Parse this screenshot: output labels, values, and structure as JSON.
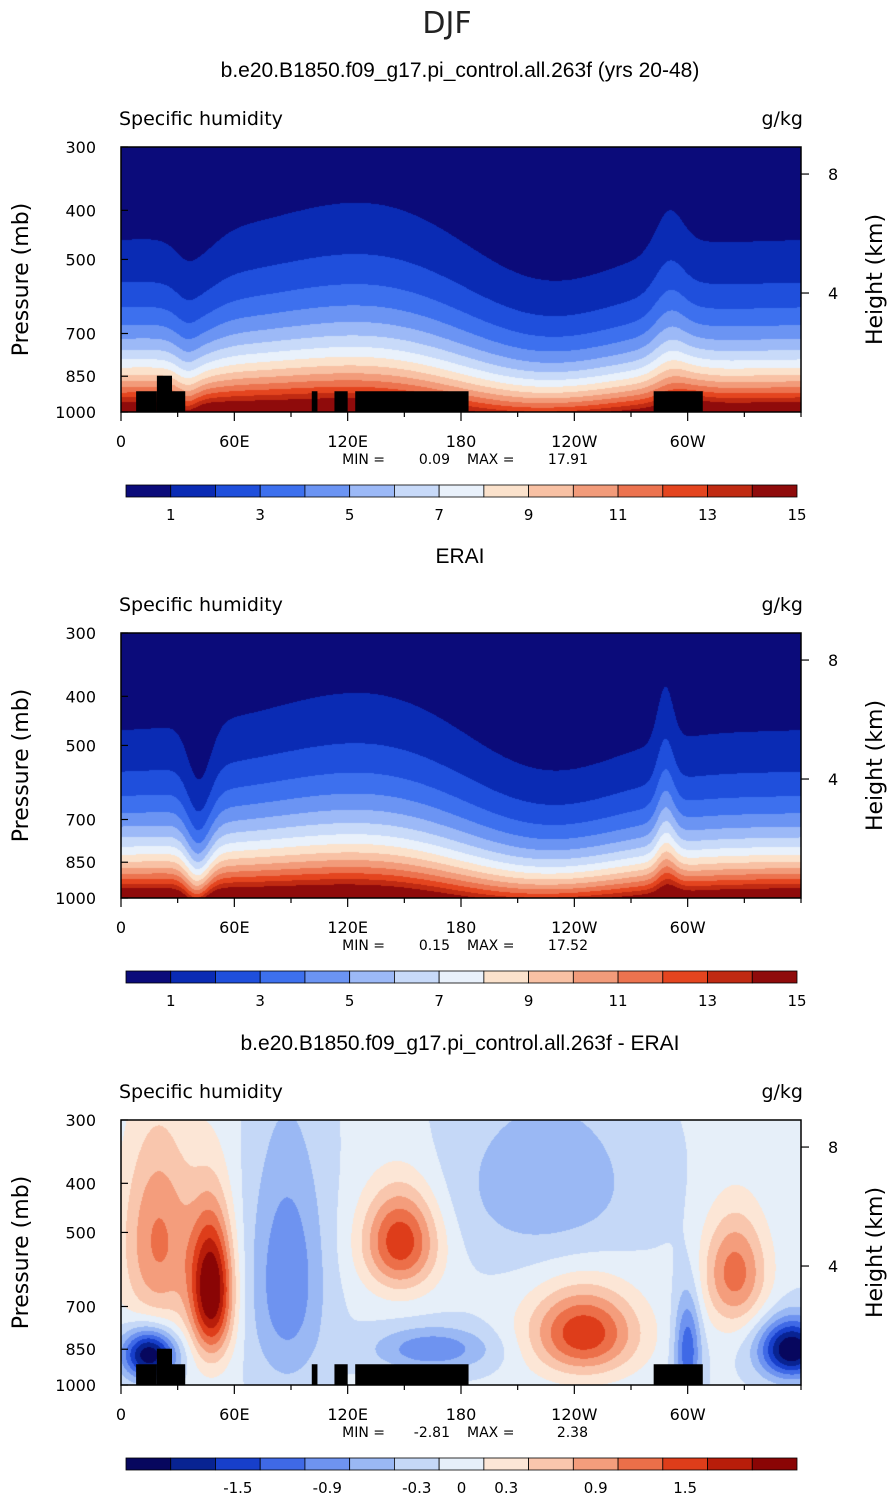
{
  "figure_title": "DJF",
  "colors": {
    "abs_scale": [
      "#0b0b7a",
      "#0a2bb4",
      "#1f4fdc",
      "#3d70ee",
      "#6b94f3",
      "#9cb9f7",
      "#c8daf9",
      "#e9f1fb",
      "#fbe2cc",
      "#f8c1a4",
      "#f29b7a",
      "#ec734f",
      "#e4451f",
      "#c02a12",
      "#8f0b0b"
    ],
    "diff_scale": [
      "#07075e",
      "#082392",
      "#173fcb",
      "#3f69e6",
      "#6e93f0",
      "#9ab8f4",
      "#c5d8f7",
      "#e6eff9",
      "#fce6d6",
      "#f9c6ad",
      "#f49d7c",
      "#ec6f49",
      "#de3d1a",
      "#b81d0a",
      "#8a0505"
    ],
    "topography": "#000000"
  },
  "panels": [
    {
      "title": "b.e20.B1850.f09_g17.pi_control.all.263f (yrs 20-48)",
      "left_label": "Specific humidity",
      "right_label": "g/kg",
      "ylabel": "Pressure (mb)",
      "y2label": "Height (km)",
      "stats": {
        "min_label": "MIN =",
        "min": "0.09",
        "max_label": "MAX =",
        "max": "17.91"
      },
      "colorbar_labels": [
        "1",
        "3",
        "5",
        "7",
        "9",
        "11",
        "13",
        "15"
      ]
    },
    {
      "title": "ERAI",
      "left_label": "Specific humidity",
      "right_label": "g/kg",
      "ylabel": "Pressure (mb)",
      "y2label": "Height (km)",
      "stats": {
        "min_label": "MIN =",
        "min": "0.15",
        "max_label": "MAX =",
        "max": "17.52"
      },
      "colorbar_labels": [
        "1",
        "3",
        "5",
        "7",
        "9",
        "11",
        "13",
        "15"
      ]
    },
    {
      "title": "b.e20.B1850.f09_g17.pi_control.all.263f - ERAI",
      "left_label": "Specific humidity",
      "right_label": "g/kg",
      "ylabel": "Pressure (mb)",
      "y2label": "Height (km)",
      "stats": {
        "min_label": "MIN =",
        "min": "-2.81",
        "max_label": "MAX =",
        "max": "2.38"
      },
      "colorbar_labels": [
        "-1.5",
        "-0.9",
        "-0.3",
        "0",
        "0.3",
        "0.9",
        "1.5"
      ]
    }
  ],
  "chart_data": [
    {
      "type": "heatmap",
      "title": "b.e20.B1850.f09_g17.pi_control.all.263f (yrs 20-48)",
      "variable": "Specific humidity",
      "units": "g/kg",
      "ylabel": "Pressure (mb)",
      "y2label": "Height (km)",
      "x_ticks": [
        "0",
        "60E",
        "120E",
        "180",
        "120W",
        "60W"
      ],
      "x_tick_values": [
        0,
        60,
        120,
        180,
        240,
        300
      ],
      "xlim": [
        0,
        360
      ],
      "y_ticks": [
        "300",
        "400",
        "500",
        "700",
        "850",
        "1000"
      ],
      "y_tick_values": [
        300,
        400,
        500,
        700,
        850,
        1000
      ],
      "ylim": [
        300,
        1000
      ],
      "y_log_scale": true,
      "y2_ticks": [
        "8",
        "4"
      ],
      "y2_tick_values": [
        8,
        4
      ],
      "contour_levels": [
        0,
        1,
        2,
        3,
        4,
        5,
        6,
        7,
        8,
        9,
        10,
        11,
        12,
        13,
        14,
        15
      ],
      "colorbar_tick_values": [
        1,
        3,
        5,
        7,
        9,
        11,
        13,
        15
      ],
      "min": 0.09,
      "max": 17.91,
      "land_mask": true
    },
    {
      "type": "heatmap",
      "title": "ERAI",
      "variable": "Specific humidity",
      "units": "g/kg",
      "ylabel": "Pressure (mb)",
      "y2label": "Height (km)",
      "x_ticks": [
        "0",
        "60E",
        "120E",
        "180",
        "120W",
        "60W"
      ],
      "x_tick_values": [
        0,
        60,
        120,
        180,
        240,
        300
      ],
      "xlim": [
        0,
        360
      ],
      "y_ticks": [
        "300",
        "400",
        "500",
        "700",
        "850",
        "1000"
      ],
      "y_tick_values": [
        300,
        400,
        500,
        700,
        850,
        1000
      ],
      "ylim": [
        300,
        1000
      ],
      "y_log_scale": true,
      "y2_ticks": [
        "8",
        "4"
      ],
      "y2_tick_values": [
        8,
        4
      ],
      "contour_levels": [
        0,
        1,
        2,
        3,
        4,
        5,
        6,
        7,
        8,
        9,
        10,
        11,
        12,
        13,
        14,
        15
      ],
      "colorbar_tick_values": [
        1,
        3,
        5,
        7,
        9,
        11,
        13,
        15
      ],
      "min": 0.15,
      "max": 17.52,
      "land_mask": false
    },
    {
      "type": "heatmap",
      "title": "b.e20.B1850.f09_g17.pi_control.all.263f - ERAI",
      "variable": "Specific humidity",
      "units": "g/kg",
      "ylabel": "Pressure (mb)",
      "y2label": "Height (km)",
      "x_ticks": [
        "0",
        "60E",
        "120E",
        "180",
        "120W",
        "60W"
      ],
      "x_tick_values": [
        0,
        60,
        120,
        180,
        240,
        300
      ],
      "xlim": [
        0,
        360
      ],
      "y_ticks": [
        "300",
        "400",
        "500",
        "700",
        "850",
        "1000"
      ],
      "y_tick_values": [
        300,
        400,
        500,
        700,
        850,
        1000
      ],
      "ylim": [
        300,
        1000
      ],
      "y_log_scale": true,
      "y2_ticks": [
        "8",
        "4"
      ],
      "y2_tick_values": [
        8,
        4
      ],
      "contour_levels": [
        -2.1,
        -1.8,
        -1.5,
        -1.2,
        -0.9,
        -0.6,
        -0.3,
        0,
        0.3,
        0.6,
        0.9,
        1.2,
        1.5,
        1.8,
        2.1
      ],
      "colorbar_tick_values": [
        -1.5,
        -0.9,
        -0.3,
        0,
        0.3,
        0.9,
        1.5
      ],
      "min": -2.81,
      "max": 2.38,
      "land_mask": true
    }
  ]
}
